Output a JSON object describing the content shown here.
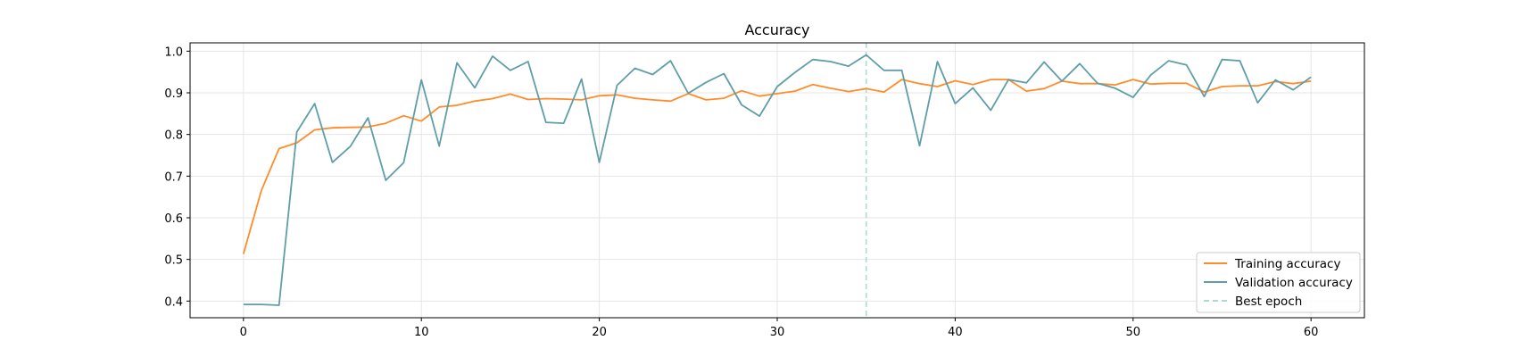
{
  "chart_data": {
    "type": "line",
    "title": "Accuracy",
    "xlabel": "",
    "ylabel": "",
    "xlim": [
      -3,
      63
    ],
    "ylim": [
      0.36,
      1.02
    ],
    "xticks": [
      0,
      10,
      20,
      30,
      40,
      50,
      60
    ],
    "yticks": [
      0.4,
      0.5,
      0.6,
      0.7,
      0.8,
      0.9,
      1.0
    ],
    "ytick_labels": [
      "0.4",
      "0.5",
      "0.6",
      "0.7",
      "0.8",
      "0.9",
      "1.0"
    ],
    "grid": true,
    "legend_position": "lower-right",
    "x": [
      0,
      1,
      2,
      3,
      4,
      5,
      6,
      7,
      8,
      9,
      10,
      11,
      12,
      13,
      14,
      15,
      16,
      17,
      18,
      19,
      20,
      21,
      22,
      23,
      24,
      25,
      26,
      27,
      28,
      29,
      30,
      31,
      32,
      33,
      34,
      35,
      36,
      37,
      38,
      39,
      40,
      41,
      42,
      43,
      44,
      45,
      46,
      47,
      48,
      49,
      50,
      51,
      52,
      53,
      54,
      55,
      56,
      57,
      58,
      59,
      60
    ],
    "series": [
      {
        "name": "Training accuracy",
        "color": "#ff8c2a",
        "values": [
          0.513,
          0.665,
          0.766,
          0.78,
          0.811,
          0.816,
          0.817,
          0.818,
          0.827,
          0.845,
          0.832,
          0.866,
          0.87,
          0.88,
          0.886,
          0.897,
          0.884,
          0.886,
          0.885,
          0.883,
          0.893,
          0.895,
          0.887,
          0.883,
          0.88,
          0.898,
          0.883,
          0.887,
          0.905,
          0.892,
          0.898,
          0.904,
          0.92,
          0.911,
          0.903,
          0.91,
          0.902,
          0.932,
          0.922,
          0.915,
          0.929,
          0.92,
          0.932,
          0.932,
          0.904,
          0.91,
          0.928,
          0.922,
          0.922,
          0.919,
          0.932,
          0.921,
          0.923,
          0.923,
          0.902,
          0.915,
          0.917,
          0.917,
          0.927,
          0.922,
          0.928
        ]
      },
      {
        "name": "Validation accuracy",
        "color": "#5f9ea8",
        "values": [
          0.392,
          0.392,
          0.39,
          0.806,
          0.874,
          0.733,
          0.771,
          0.84,
          0.69,
          0.732,
          0.931,
          0.772,
          0.972,
          0.912,
          0.988,
          0.954,
          0.975,
          0.829,
          0.827,
          0.933,
          0.733,
          0.918,
          0.959,
          0.944,
          0.977,
          0.899,
          0.925,
          0.946,
          0.871,
          0.844,
          0.915,
          0.949,
          0.98,
          0.975,
          0.964,
          0.991,
          0.954,
          0.954,
          0.773,
          0.975,
          0.874,
          0.912,
          0.858,
          0.932,
          0.924,
          0.974,
          0.928,
          0.97,
          0.923,
          0.911,
          0.889,
          0.943,
          0.977,
          0.967,
          0.891,
          0.98,
          0.977,
          0.876,
          0.931,
          0.907,
          0.938
        ]
      }
    ],
    "best_epoch": {
      "label": "Best epoch",
      "x": 35,
      "color": "#a8dcd0"
    }
  }
}
